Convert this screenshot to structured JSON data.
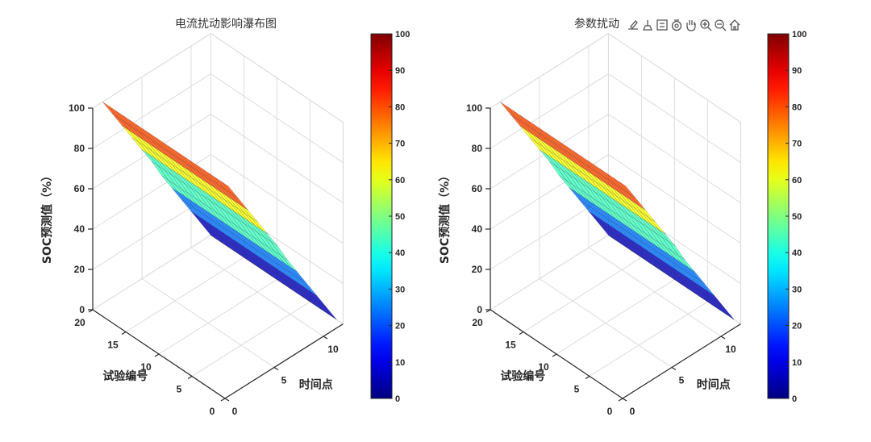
{
  "toolbar": {
    "icons": [
      "export-icon",
      "brush-icon",
      "datatip-icon",
      "rotate-icon",
      "pan-icon",
      "zoom-in-icon",
      "zoom-out-icon",
      "home-icon"
    ]
  },
  "chart_data": [
    {
      "type": "surface3d",
      "title": "电流扰动影响瀑布图",
      "xlabel": "时间点",
      "ylabel": "试验编号",
      "zlabel": "SOC预测值（%）",
      "xlim": [
        0,
        12
      ],
      "ylim": [
        0,
        20
      ],
      "zlim": [
        0,
        100
      ],
      "xticks": [
        0,
        5,
        10
      ],
      "yticks": [
        0,
        5,
        10,
        15,
        20
      ],
      "zticks": [
        0,
        20,
        40,
        60,
        80,
        100
      ],
      "colormap": "jet",
      "colorbar": {
        "min": 0,
        "max": 100,
        "ticks": [
          0,
          10,
          20,
          30,
          40,
          50,
          60,
          70,
          80,
          90,
          100
        ]
      },
      "x": [
        1,
        2,
        3,
        4,
        5,
        6,
        7,
        8,
        9,
        10,
        11,
        12
      ],
      "y_range": [
        1,
        20
      ],
      "z_by_time": [
        100,
        91,
        82,
        73,
        64,
        55,
        45,
        36,
        27,
        18,
        9,
        0
      ],
      "note_visible": ""
    },
    {
      "type": "surface3d",
      "title": "参数扰动",
      "xlabel": "时间点",
      "ylabel": "试验编号",
      "zlabel": "SOC预测值（%）",
      "xlim": [
        0,
        12
      ],
      "ylim": [
        0,
        20
      ],
      "zlim": [
        0,
        100
      ],
      "xticks": [
        0,
        5,
        10
      ],
      "yticks": [
        0,
        5,
        10,
        15,
        20
      ],
      "zticks": [
        0,
        20,
        40,
        60,
        80,
        100
      ],
      "colormap": "jet",
      "colorbar": {
        "min": 0,
        "max": 100,
        "ticks": [
          0,
          10,
          20,
          30,
          40,
          50,
          60,
          70,
          80,
          90,
          100
        ]
      },
      "x": [
        1,
        2,
        3,
        4,
        5,
        6,
        7,
        8,
        9,
        10,
        11,
        12
      ],
      "y_range": [
        1,
        20
      ],
      "z_by_time": [
        100,
        91,
        82,
        73,
        64,
        55,
        45,
        36,
        27,
        18,
        9,
        0
      ],
      "note_visible": ""
    }
  ]
}
